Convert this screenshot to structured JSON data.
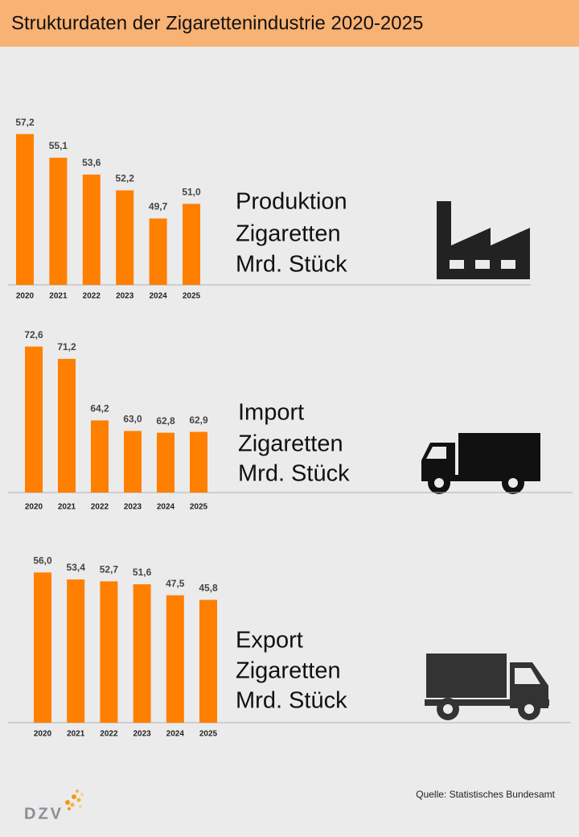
{
  "title": "Strukturdaten der Zigarettenindustrie 2020-2025",
  "source": "Quelle: Statistisches Bundesamt",
  "logo": "DZV",
  "chart_data": [
    {
      "type": "bar",
      "title_lines": [
        "Produktion",
        "Zigaretten",
        "Mrd. Stück"
      ],
      "categories": [
        "2020",
        "2021",
        "2022",
        "2023",
        "2024",
        "2025"
      ],
      "values": [
        57.2,
        55.1,
        53.6,
        52.2,
        49.7,
        51.0
      ],
      "value_labels": [
        "57,2",
        "55,1",
        "53,6",
        "52,2",
        "49,7",
        "51,0"
      ],
      "color": "#ff7f00",
      "ylim": [
        43.8,
        58.1
      ]
    },
    {
      "type": "bar",
      "title_lines": [
        "Import",
        "Zigaretten",
        "Mrd. Stück"
      ],
      "categories": [
        "2020",
        "2021",
        "2022",
        "2023",
        "2024",
        "2025"
      ],
      "values": [
        72.6,
        71.2,
        64.2,
        63.0,
        62.8,
        62.9
      ],
      "value_labels": [
        "72,6",
        "71,2",
        "64,2",
        "63,0",
        "62,8",
        "62,9"
      ],
      "color": "#ff7f00",
      "ylim": [
        56,
        74.3
      ]
    },
    {
      "type": "bar",
      "title_lines": [
        "Export",
        "Zigaretten",
        "Mrd. Stück"
      ],
      "categories": [
        "2020",
        "2021",
        "2022",
        "2023",
        "2024",
        "2025"
      ],
      "values": [
        56.0,
        53.4,
        52.7,
        51.6,
        47.5,
        45.8
      ],
      "value_labels": [
        "56,0",
        "53,4",
        "52,7",
        "51,6",
        "47,5",
        "45,8"
      ],
      "color": "#ff7f00",
      "ylim": [
        0,
        60
      ]
    }
  ]
}
